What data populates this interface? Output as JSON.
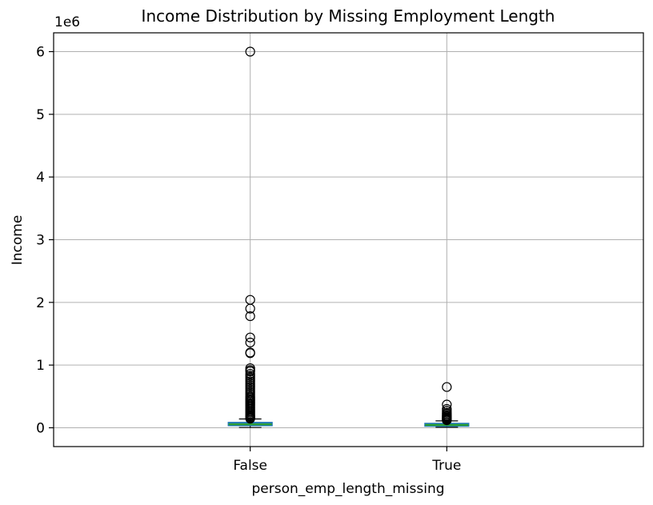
{
  "chart_data": {
    "type": "box",
    "title": "Income Distribution by Missing Employment Length",
    "xlabel": "person_emp_length_missing",
    "ylabel": "Income",
    "y_offset_label": "1e6",
    "y_scale_factor": 1000000,
    "ylim": [
      -300000,
      6300000
    ],
    "y_ticks": [
      0,
      1000000,
      2000000,
      3000000,
      4000000,
      5000000,
      6000000
    ],
    "y_tick_labels": [
      "0",
      "1",
      "2",
      "3",
      "4",
      "5",
      "6"
    ],
    "categories": [
      "False",
      "True"
    ],
    "grid": true,
    "colors": {
      "box": "#1f77b4",
      "median": "#2ca02c",
      "whisker": "#000000",
      "grid": "#b0b0b0"
    },
    "boxes": [
      {
        "category": "False",
        "whisker_low": 4000,
        "q1": 39000,
        "median": 55000,
        "q3": 80000,
        "whisker_high": 140000,
        "outliers": [
          6000000,
          2040000,
          1900000,
          1780000,
          1440000,
          1360000,
          1200000,
          1190000,
          950000,
          920000,
          900000,
          860000,
          830000,
          800000,
          770000,
          740000,
          710000,
          680000,
          650000,
          620000,
          590000,
          560000,
          530000,
          500000,
          480000,
          460000,
          440000,
          420000,
          400000,
          380000,
          360000,
          340000,
          320000,
          300000,
          280000,
          260000,
          240000,
          220000,
          200000,
          185000,
          170000,
          155000,
          145000
        ]
      },
      {
        "category": "True",
        "whisker_low": 8000,
        "q1": 30000,
        "median": 45000,
        "q3": 65000,
        "whisker_high": 110000,
        "outliers": [
          650000,
          370000,
          300000,
          270000,
          240000,
          220000,
          200000,
          185000,
          170000,
          160000,
          150000,
          140000,
          130000,
          120000
        ]
      }
    ]
  }
}
